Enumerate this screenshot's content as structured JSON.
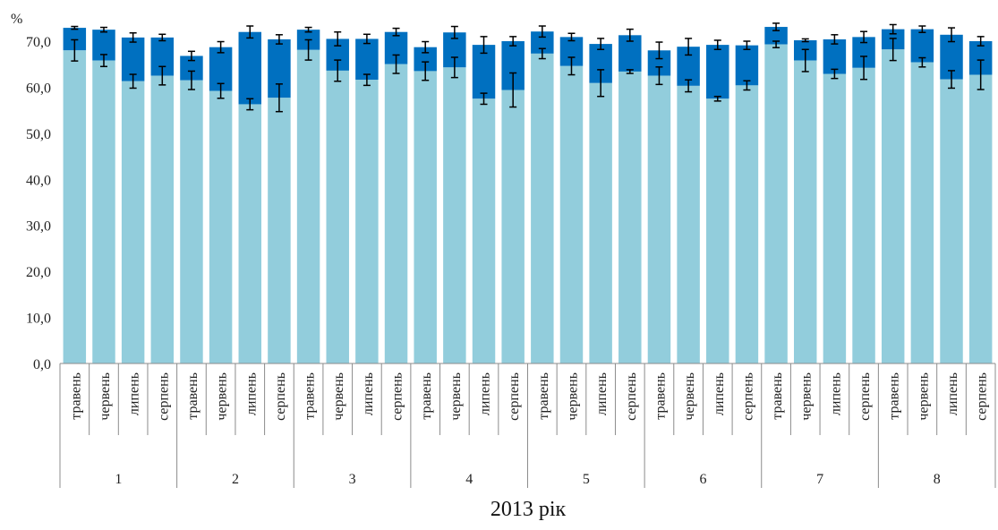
{
  "chart_data": {
    "type": "bar",
    "stacked": true,
    "y_unit_label": "%",
    "xlabel": "2013 рік",
    "ylim": [
      0,
      70
    ],
    "yticks": [
      "0,0",
      "10,0",
      "20,0",
      "30,0",
      "40,0",
      "50,0",
      "60,0",
      "70,0"
    ],
    "groups": [
      "1",
      "2",
      "3",
      "4",
      "5",
      "6",
      "7",
      "8"
    ],
    "months": [
      "травень",
      "червень",
      "липень",
      "серпень"
    ],
    "colors": {
      "lower": "#92cddc",
      "upper": "#0070c0",
      "error": "#000000"
    },
    "series": [
      {
        "values": [
          68.0,
          65.8,
          61.3,
          62.5,
          61.5,
          59.2,
          56.3,
          57.7,
          68.1,
          63.6,
          61.6,
          65.0,
          63.5,
          64.3,
          57.5,
          59.4,
          67.3,
          64.6,
          60.9,
          63.4,
          62.5,
          60.3,
          57.5,
          60.4,
          69.3,
          65.8,
          62.9,
          64.2,
          68.2,
          65.4,
          61.7,
          62.7
        ],
        "errors": [
          2.3,
          1.3,
          1.5,
          2.0,
          2.0,
          1.6,
          1.2,
          3.0,
          2.2,
          2.3,
          1.2,
          2.0,
          2.0,
          2.2,
          1.2,
          3.7,
          1.1,
          1.9,
          2.9,
          0.4,
          1.9,
          1.3,
          0.5,
          1.0,
          0.7,
          2.4,
          1.0,
          2.5,
          2.4,
          1.0,
          1.9,
          3.2
        ]
      },
      {
        "values": [
          4.9,
          6.7,
          9.5,
          8.3,
          5.3,
          9.5,
          15.7,
          12.7,
          4.4,
          6.9,
          8.9,
          7.0,
          5.2,
          7.6,
          11.7,
          10.6,
          4.8,
          6.3,
          8.5,
          7.9,
          5.5,
          8.5,
          11.7,
          8.7,
          3.8,
          4.4,
          7.5,
          6.7,
          4.4,
          7.2,
          9.7,
          7.3
        ]
      }
    ],
    "upper_errors": [
      0.3,
      0.5,
      1.0,
      0.7,
      1.0,
      1.2,
      1.3,
      1.0,
      0.5,
      1.5,
      1.0,
      0.8,
      1.2,
      1.3,
      1.8,
      1.0,
      1.2,
      0.8,
      1.2,
      1.3,
      1.8,
      1.8,
      1.0,
      0.9,
      0.8,
      0.3,
      1.0,
      1.2,
      1.0,
      0.7,
      1.5,
      1.0
    ]
  }
}
